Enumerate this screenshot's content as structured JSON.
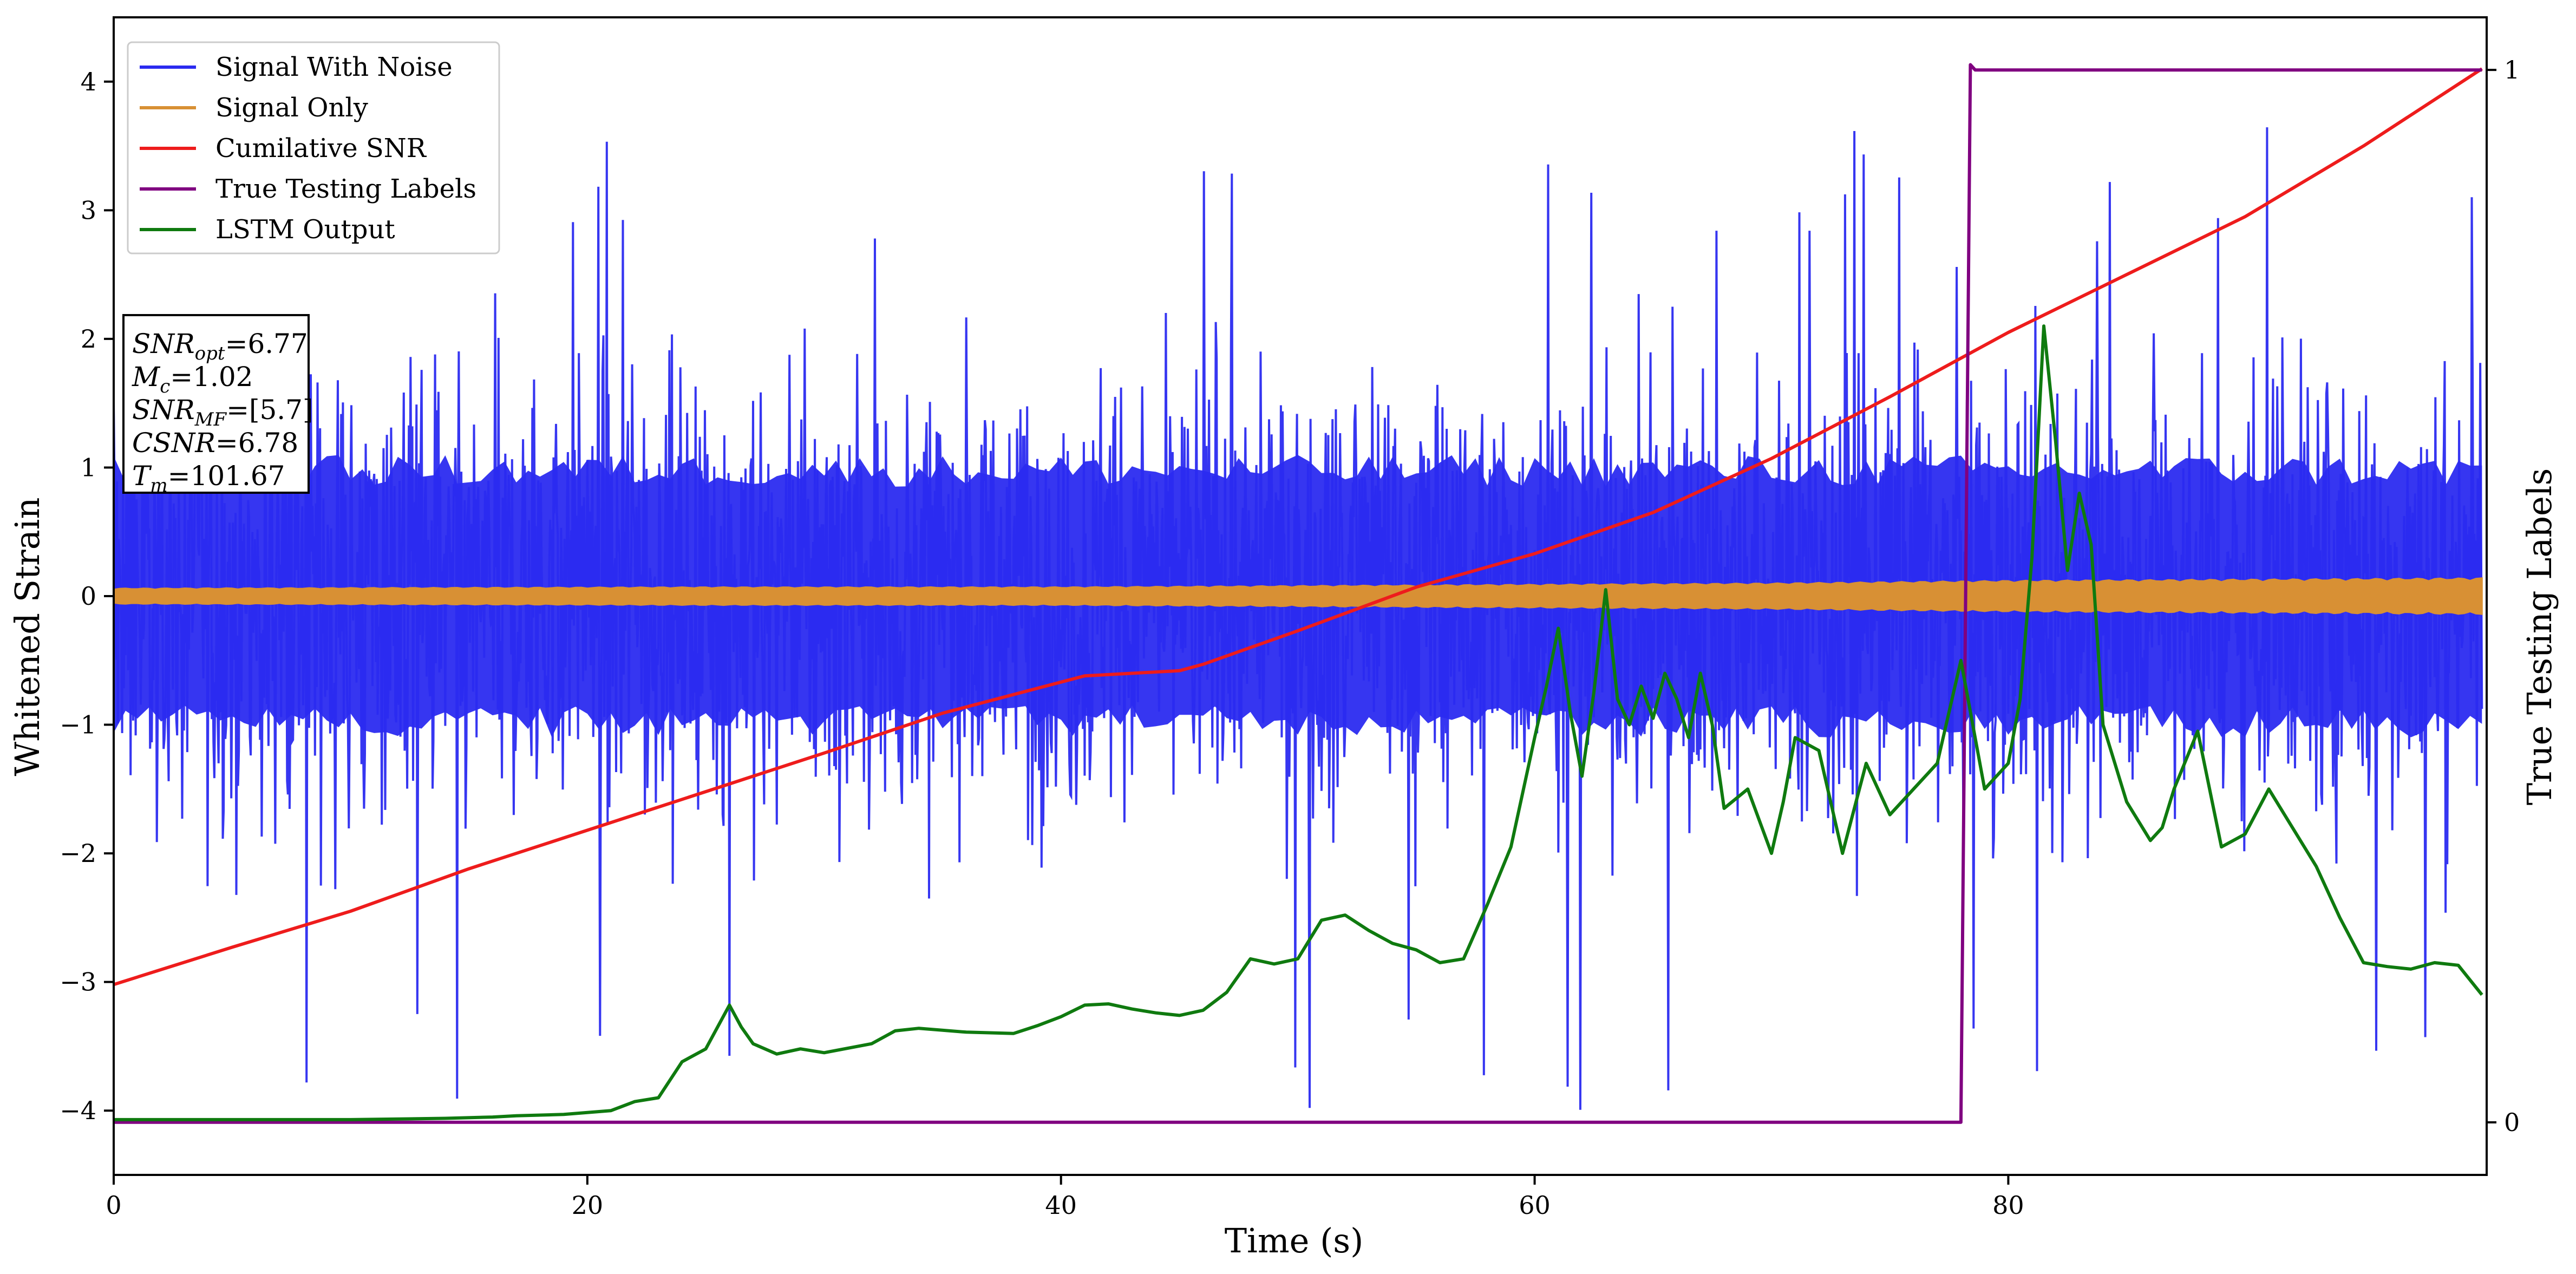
{
  "chart_data": {
    "type": "line",
    "xlabel": "Time (s)",
    "ylabel": "Whitened Strain",
    "y2label": "True Testing Labels",
    "xlim": [
      0,
      100.2
    ],
    "ylim": [
      -4.5,
      4.5
    ],
    "y2lim": [
      -0.05,
      1.05
    ],
    "xticks": [
      "0",
      "20",
      "40",
      "60",
      "80"
    ],
    "yticks": [
      "−4",
      "−3",
      "−2",
      "−1",
      "0",
      "1",
      "2",
      "3",
      "4"
    ],
    "y2ticks": [
      "0",
      "1"
    ],
    "grid": false,
    "legend_position": "top-left",
    "colors": {
      "signal_with_noise": "#2b2bf0",
      "signal_only": "#d89034",
      "cumulative_snr": "#ee1c1c",
      "true_labels": "#800080",
      "lstm_output": "#0f7a0f"
    },
    "series": [
      {
        "name": "Signal With Noise",
        "axis": "left",
        "envelope": {
          "typical_upper": 2.2,
          "typical_lower": -2.0,
          "peak_max": 3.65,
          "peak_min": -4.0
        }
      },
      {
        "name": "Signal Only",
        "axis": "left",
        "amplitude": {
          "x": [
            0,
            25,
            40,
            50,
            60,
            70,
            80,
            90,
            100
          ],
          "values": [
            0.06,
            0.07,
            0.07,
            0.08,
            0.09,
            0.1,
            0.12,
            0.13,
            0.14
          ]
        }
      },
      {
        "name": "Cumilative SNR",
        "axis": "left",
        "x": [
          0,
          5,
          10,
          15,
          20,
          25,
          30,
          35,
          41,
          45,
          46,
          50,
          55,
          60,
          65,
          70,
          75,
          80,
          85,
          90,
          95,
          100
        ],
        "y": [
          -3.02,
          -2.73,
          -2.45,
          -2.12,
          -1.82,
          -1.52,
          -1.22,
          -0.91,
          -0.62,
          -0.58,
          -0.53,
          -0.27,
          0.07,
          0.33,
          0.65,
          1.07,
          1.55,
          2.05,
          2.5,
          2.95,
          3.5,
          4.1
        ]
      },
      {
        "name": "True Testing Labels",
        "axis": "right",
        "x": [
          0,
          78.0,
          78.4,
          78.6,
          100
        ],
        "y": [
          0,
          0,
          1.005,
          1,
          1
        ]
      },
      {
        "name": "LSTM Output",
        "axis": "left",
        "x": [
          0,
          10,
          14,
          16,
          17,
          19,
          21,
          22,
          23,
          24,
          25,
          26,
          26.5,
          27,
          28,
          29,
          30,
          32,
          33,
          34,
          36,
          38,
          39,
          40,
          41,
          42,
          43,
          44,
          45,
          46,
          47,
          48,
          49,
          50,
          51,
          52,
          53,
          54,
          55,
          56,
          57,
          58,
          59,
          60,
          60.5,
          61,
          61.5,
          62,
          62.5,
          63,
          63.5,
          64,
          64.5,
          65,
          65.5,
          66,
          66.5,
          67,
          67.5,
          68,
          69,
          70,
          70.5,
          71,
          72,
          73,
          74,
          75,
          76,
          77,
          78,
          79,
          80,
          80.5,
          81,
          81.5,
          82,
          82.5,
          83,
          83.5,
          84,
          85,
          86,
          86.5,
          87,
          88,
          89,
          90,
          91,
          92,
          93,
          94,
          95,
          96,
          97,
          98,
          99,
          100
        ],
        "y": [
          -4.07,
          -4.07,
          -4.06,
          -4.05,
          -4.04,
          -4.03,
          -4.0,
          -3.93,
          -3.9,
          -3.62,
          -3.52,
          -3.18,
          -3.35,
          -3.48,
          -3.56,
          -3.52,
          -3.55,
          -3.48,
          -3.38,
          -3.36,
          -3.39,
          -3.4,
          -3.34,
          -3.27,
          -3.18,
          -3.17,
          -3.21,
          -3.24,
          -3.26,
          -3.22,
          -3.08,
          -2.82,
          -2.86,
          -2.82,
          -2.52,
          -2.48,
          -2.6,
          -2.7,
          -2.75,
          -2.85,
          -2.82,
          -2.4,
          -1.95,
          -1.1,
          -0.7,
          -0.25,
          -0.9,
          -1.4,
          -0.75,
          0.05,
          -0.8,
          -1.0,
          -0.7,
          -0.95,
          -0.6,
          -0.8,
          -1.1,
          -0.6,
          -1.0,
          -1.65,
          -1.5,
          -2.0,
          -1.6,
          -1.1,
          -1.2,
          -2.0,
          -1.3,
          -1.7,
          -1.5,
          -1.3,
          -0.5,
          -1.5,
          -1.3,
          -0.8,
          0.3,
          2.1,
          1.2,
          0.2,
          0.8,
          0.4,
          -1.0,
          -1.6,
          -1.9,
          -1.8,
          -1.5,
          -1.05,
          -1.95,
          -1.85,
          -1.5,
          -1.8,
          -2.1,
          -2.5,
          -2.85,
          -2.88,
          -2.9,
          -2.85,
          -2.87,
          -3.1
        ]
      }
    ],
    "annotation": {
      "lines": [
        {
          "base": "SNR",
          "sub": "opt",
          "value": "=6.77"
        },
        {
          "base": "M",
          "sub": "c",
          "value": "=1.02"
        },
        {
          "base": "SNR",
          "sub": "MF",
          "value": "=[5.7]"
        },
        {
          "base": "CSNR",
          "sub": "",
          "value": "=6.78"
        },
        {
          "base": "T",
          "sub": "m",
          "value": "=101.67"
        }
      ]
    }
  }
}
